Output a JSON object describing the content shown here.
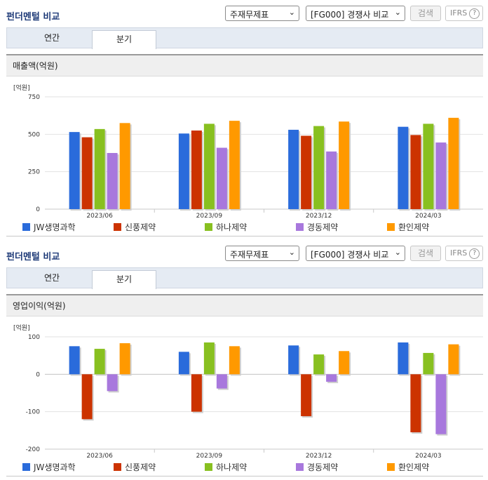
{
  "panels": [
    {
      "title": "펀더멘털 비교",
      "select_type": "주재무제표",
      "select_group": "[FG000] 경쟁사 비교",
      "search_label": "검색",
      "ifrs_label": "IFRS",
      "tabs": [
        {
          "label": "연간"
        },
        {
          "label": "분기"
        }
      ],
      "active_tab": 1,
      "subtitle": "매출액(억원)",
      "unit": "[억원]"
    },
    {
      "title": "펀더멘털 비교",
      "select_type": "주재무제표",
      "select_group": "[FG000] 경쟁사 비교",
      "search_label": "검색",
      "ifrs_label": "IFRS",
      "tabs": [
        {
          "label": "연간"
        },
        {
          "label": "분기"
        }
      ],
      "active_tab": 1,
      "subtitle": "영업이익(억원)",
      "unit": "[억원]"
    }
  ],
  "chart_data": [
    {
      "type": "bar",
      "title": "매출액(억원)",
      "ylabel": "[억원]",
      "categories": [
        "2023/06",
        "2023/09",
        "2023/12",
        "2024/03"
      ],
      "ylim": [
        0,
        750
      ],
      "yticks": [
        0,
        250,
        500,
        750
      ],
      "grid": true,
      "legend_position": "bottom",
      "series": [
        {
          "name": "JW생명과학",
          "color": "#2a6bdb",
          "values": [
            515,
            505,
            530,
            550
          ]
        },
        {
          "name": "신풍제약",
          "color": "#cc3300",
          "values": [
            480,
            525,
            490,
            495
          ]
        },
        {
          "name": "하나제약",
          "color": "#88c020",
          "values": [
            535,
            570,
            555,
            570
          ]
        },
        {
          "name": "경동제약",
          "color": "#a878dd",
          "values": [
            375,
            410,
            385,
            445
          ]
        },
        {
          "name": "환인제약",
          "color": "#ff9900",
          "values": [
            575,
            590,
            585,
            610
          ]
        }
      ]
    },
    {
      "type": "bar",
      "title": "영업이익(억원)",
      "ylabel": "[억원]",
      "categories": [
        "2023/06",
        "2023/09",
        "2023/12",
        "2024/03"
      ],
      "ylim": [
        -200,
        100
      ],
      "yticks": [
        -200,
        -100,
        0,
        100
      ],
      "grid": true,
      "legend_position": "bottom",
      "series": [
        {
          "name": "JW생명과학",
          "color": "#2a6bdb",
          "values": [
            75,
            60,
            77,
            85
          ]
        },
        {
          "name": "신풍제약",
          "color": "#cc3300",
          "values": [
            -120,
            -100,
            -112,
            -155
          ]
        },
        {
          "name": "하나제약",
          "color": "#88c020",
          "values": [
            68,
            85,
            53,
            57
          ]
        },
        {
          "name": "경동제약",
          "color": "#a878dd",
          "values": [
            -45,
            -38,
            -20,
            -160
          ]
        },
        {
          "name": "환인제약",
          "color": "#ff9900",
          "values": [
            83,
            75,
            62,
            80
          ]
        }
      ]
    }
  ]
}
